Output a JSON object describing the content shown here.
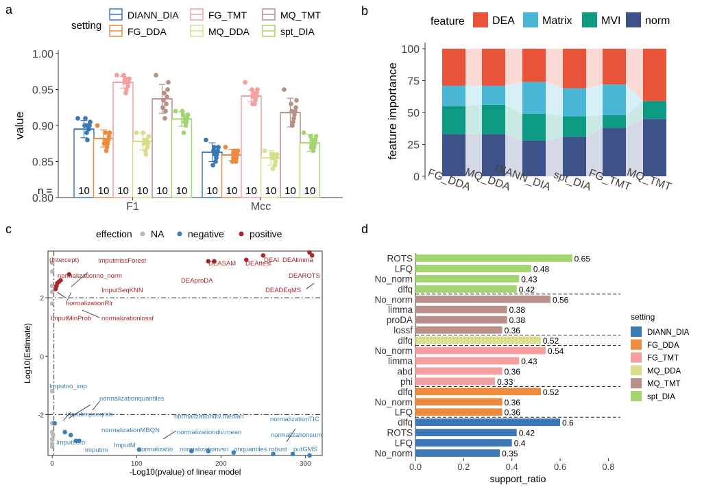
{
  "panel_labels": {
    "a": "a",
    "b": "b",
    "c": "c",
    "d": "d"
  },
  "colors": {
    "DIANN_DIA": "#3b78b5",
    "FG_DDA": "#ec8a3d",
    "FG_TMT": "#f4a0a0",
    "MQ_DDA": "#d9de8a",
    "MQ_TMT": "#b89088",
    "spt_DIA": "#a3d46e",
    "DEA": "#e8533a",
    "Matrix": "#4ab6d6",
    "MVI": "#0d9982",
    "norm": "#3c5289",
    "positive": "#a8282a",
    "negative": "#3d80b8",
    "NA": "#b8b8b8"
  },
  "chart_data": [
    {
      "panel": "a",
      "type": "bar",
      "legend_title": "setting",
      "legend": [
        "DIANN_DIA",
        "FG_TMT",
        "MQ_TMT",
        "FG_DDA",
        "MQ_DDA",
        "spt_DIA"
      ],
      "series_order": [
        "DIANN_DIA",
        "FG_DDA",
        "FG_TMT",
        "MQ_DDA",
        "MQ_TMT",
        "spt_DIA"
      ],
      "categories": [
        "F1",
        "Mcc"
      ],
      "ylabel": "value",
      "xlabel": "",
      "ylim": [
        0.8,
        1.0
      ],
      "yticks": [
        "0.80",
        "0.85",
        "0.90",
        "0.95",
        "1.00"
      ],
      "n_label": "n =",
      "n_values": [
        "10",
        "10",
        "10",
        "10",
        "10",
        "10",
        "10",
        "10",
        "10",
        "10",
        "10",
        "10"
      ],
      "means": {
        "F1": [
          0.895,
          0.882,
          0.96,
          0.878,
          0.937,
          0.909
        ],
        "Mcc": [
          0.863,
          0.859,
          0.941,
          0.855,
          0.918,
          0.876
        ]
      },
      "sd": {
        "F1": [
          0.012,
          0.012,
          0.008,
          0.012,
          0.02,
          0.01
        ],
        "Mcc": [
          0.013,
          0.008,
          0.008,
          0.01,
          0.02,
          0.012
        ]
      },
      "points": {
        "F1": [
          [
            0.91,
            0.905,
            0.9,
            0.895,
            0.9,
            0.88,
            0.89,
            0.9,
            0.91,
            0.9
          ],
          [
            0.9,
            0.89,
            0.885,
            0.88,
            0.875,
            0.87,
            0.865,
            0.89,
            0.88,
            0.875
          ],
          [
            0.97,
            0.965,
            0.96,
            0.955,
            0.96,
            0.95,
            0.945,
            0.965,
            0.96,
            0.97
          ],
          [
            0.89,
            0.885,
            0.875,
            0.87,
            0.88,
            0.86,
            0.865,
            0.88,
            0.875,
            0.89
          ],
          [
            0.97,
            0.96,
            0.95,
            0.94,
            0.93,
            0.92,
            0.91,
            0.945,
            0.935,
            0.925
          ],
          [
            0.92,
            0.915,
            0.91,
            0.905,
            0.9,
            0.91,
            0.905,
            0.89,
            0.915,
            0.92
          ]
        ],
        "Mcc": [
          [
            0.88,
            0.87,
            0.865,
            0.86,
            0.855,
            0.85,
            0.86,
            0.87,
            0.865,
            0.845
          ],
          [
            0.87,
            0.865,
            0.86,
            0.855,
            0.85,
            0.86,
            0.865,
            0.855,
            0.86,
            0.85
          ],
          [
            0.96,
            0.95,
            0.945,
            0.94,
            0.935,
            0.93,
            0.945,
            0.94,
            0.93,
            0.95
          ],
          [
            0.865,
            0.86,
            0.855,
            0.85,
            0.845,
            0.855,
            0.86,
            0.84,
            0.855,
            0.86
          ],
          [
            0.95,
            0.935,
            0.925,
            0.92,
            0.915,
            0.91,
            0.905,
            0.9,
            0.92,
            0.93
          ],
          [
            0.89,
            0.885,
            0.88,
            0.875,
            0.87,
            0.865,
            0.88,
            0.875,
            0.87,
            0.885
          ]
        ]
      }
    },
    {
      "panel": "b",
      "type": "bar",
      "stacked": true,
      "legend_title": "feature",
      "stack_order_bottom_to_top": [
        "norm",
        "MVI",
        "Matrix",
        "DEA"
      ],
      "legend": [
        "DEA",
        "Matrix",
        "MVI",
        "norm"
      ],
      "categories": [
        "FG_DDA",
        "MQ_DDA",
        "DIANN_DIA",
        "spt_DIA",
        "FG_TMT",
        "MQ_TMT"
      ],
      "ylabel": "feature importance",
      "xlabel": "",
      "ylim": [
        0,
        100
      ],
      "yticks": [
        "0",
        "25",
        "50",
        "75",
        "100"
      ],
      "series": [
        {
          "name": "norm",
          "values": [
            33,
            33,
            28,
            31,
            38,
            45
          ]
        },
        {
          "name": "MVI",
          "values": [
            22,
            23,
            21,
            16,
            10,
            14
          ]
        },
        {
          "name": "Matrix",
          "values": [
            16,
            15,
            25,
            22,
            24,
            0
          ]
        },
        {
          "name": "DEA",
          "values": [
            29,
            29,
            26,
            31,
            28,
            41
          ]
        }
      ]
    },
    {
      "panel": "c",
      "type": "scatter",
      "legend_title": "effection",
      "legend": [
        "NA",
        "negative",
        "positive"
      ],
      "xlabel": "-Log10(pvalue) of linear model",
      "ylabel": "Log10(Estimate)",
      "xlim": [
        -5,
        320
      ],
      "ylim": [
        -3.4,
        3.6
      ],
      "xticks": [
        "0",
        "100",
        "200",
        "300"
      ],
      "yticks": [
        "-2",
        "0",
        "2"
      ],
      "hlines": [
        2,
        -2
      ],
      "vline": 2,
      "points": [
        {
          "x": 0,
          "y": 3.2,
          "g": "NA"
        },
        {
          "x": 0,
          "y": 2.9,
          "g": "NA"
        },
        {
          "x": 0,
          "y": 2.4,
          "g": "NA"
        },
        {
          "x": 0,
          "y": 2.2,
          "g": "NA"
        },
        {
          "x": 0,
          "y": 1.8,
          "g": "NA"
        },
        {
          "x": 0,
          "y": -1.2,
          "g": "NA"
        },
        {
          "x": 0,
          "y": -2.3,
          "g": "NA"
        },
        {
          "x": 0,
          "y": -2.6,
          "g": "NA"
        },
        {
          "x": 0,
          "y": -2.85,
          "g": "NA"
        },
        {
          "x": 0,
          "y": -3.0,
          "g": "NA"
        },
        {
          "x": 0,
          "y": -3.1,
          "g": "NA"
        },
        {
          "x": 1,
          "y": -2.7,
          "g": "NA"
        },
        {
          "x": 4,
          "y": 2.3,
          "g": "positive"
        },
        {
          "x": 5,
          "y": 2.4,
          "g": "positive"
        },
        {
          "x": 6,
          "y": 2.5,
          "g": "positive"
        },
        {
          "x": 8,
          "y": 2.55,
          "g": "positive"
        },
        {
          "x": 10,
          "y": 2.6,
          "g": "positive"
        },
        {
          "x": 20,
          "y": 2.8,
          "g": "positive"
        },
        {
          "x": 185,
          "y": 3.25,
          "g": "positive"
        },
        {
          "x": 192,
          "y": 3.25,
          "g": "positive"
        },
        {
          "x": 230,
          "y": 3.3,
          "g": "positive"
        },
        {
          "x": 250,
          "y": 3.45,
          "g": "positive"
        },
        {
          "x": 305,
          "y": 3.55,
          "g": "positive"
        },
        {
          "x": 308,
          "y": 3.45,
          "g": "positive"
        },
        {
          "x": 3,
          "y": -2.3,
          "g": "negative"
        },
        {
          "x": 15,
          "y": -2.6,
          "g": "negative"
        },
        {
          "x": 22,
          "y": -2.7,
          "g": "negative"
        },
        {
          "x": 28,
          "y": -2.9,
          "g": "negative"
        },
        {
          "x": 32,
          "y": -2.9,
          "g": "negative"
        },
        {
          "x": 103,
          "y": -3.2,
          "g": "negative"
        },
        {
          "x": 165,
          "y": -3.25,
          "g": "negative"
        },
        {
          "x": 185,
          "y": -3.25,
          "g": "negative"
        },
        {
          "x": 215,
          "y": -3.3,
          "g": "negative"
        },
        {
          "x": 262,
          "y": -3.35,
          "g": "negative"
        },
        {
          "x": 285,
          "y": -3.35,
          "g": "negative"
        },
        {
          "x": 305,
          "y": -3.4,
          "g": "negative"
        }
      ],
      "annotations": [
        "(Intercept)",
        "ImputmissForest",
        "normalizationno_norm",
        "ImputSeqKNN",
        "normalizationRlr",
        "ImputMinProb",
        "normalizationlossf",
        "DEASAM",
        "DEAttest",
        "DEAI",
        "DEAlimma",
        "DEAproDA",
        "DEAROTS",
        "DEADEqMS",
        "Imputno_imp",
        "normalizationquantiles",
        "Imputimpseqrob",
        "normalizationMBQN",
        "normalizationdiv.median",
        "normalizationdiv.mean",
        "normalizationTIC",
        "normalizationsum",
        "Imputzero",
        "imputmi",
        "ImputM",
        "normalizatio",
        "normalizationvsn",
        "onquantiles.robust",
        "putGMS"
      ]
    },
    {
      "panel": "d",
      "type": "bar",
      "orientation": "horizontal",
      "legend_title": "setting",
      "legend": [
        "DIANN_DIA",
        "FG_DDA",
        "FG_TMT",
        "MQ_DDA",
        "MQ_TMT",
        "spt_DIA"
      ],
      "xlabel": "support_ratio",
      "xlim": [
        0,
        0.85
      ],
      "xticks": [
        "0.0",
        "0.2",
        "0.4",
        "0.6",
        "0.8"
      ],
      "bars": [
        {
          "label": "ROTS",
          "value": 0.65,
          "setting": "spt_DIA"
        },
        {
          "label": "LFQ",
          "value": 0.48,
          "setting": "spt_DIA"
        },
        {
          "label": "No_norm",
          "value": 0.43,
          "setting": "spt_DIA"
        },
        {
          "label": "dlfq",
          "value": 0.42,
          "setting": "spt_DIA"
        },
        {
          "label": "No_norm",
          "value": 0.56,
          "setting": "MQ_TMT"
        },
        {
          "label": "limma",
          "value": 0.38,
          "setting": "MQ_TMT"
        },
        {
          "label": "proDA",
          "value": 0.38,
          "setting": "MQ_TMT"
        },
        {
          "label": "lossf",
          "value": 0.36,
          "setting": "MQ_TMT"
        },
        {
          "label": "dlfq",
          "value": 0.52,
          "setting": "MQ_DDA"
        },
        {
          "label": "No_norm",
          "value": 0.54,
          "setting": "FG_TMT"
        },
        {
          "label": "limma",
          "value": 0.43,
          "setting": "FG_TMT"
        },
        {
          "label": "abd",
          "value": 0.36,
          "setting": "FG_TMT"
        },
        {
          "label": "phi",
          "value": 0.33,
          "setting": "FG_TMT"
        },
        {
          "label": "dlfq",
          "value": 0.52,
          "setting": "FG_DDA"
        },
        {
          "label": "No_norm",
          "value": 0.36,
          "setting": "FG_DDA"
        },
        {
          "label": "LFQ",
          "value": 0.36,
          "setting": "FG_DDA"
        },
        {
          "label": "dlfq",
          "value": 0.6,
          "setting": "DIANN_DIA"
        },
        {
          "label": "ROTS",
          "value": 0.42,
          "setting": "DIANN_DIA"
        },
        {
          "label": "LFQ",
          "value": 0.4,
          "setting": "DIANN_DIA"
        },
        {
          "label": "No_norm",
          "value": 0.35,
          "setting": "DIANN_DIA"
        }
      ]
    }
  ]
}
